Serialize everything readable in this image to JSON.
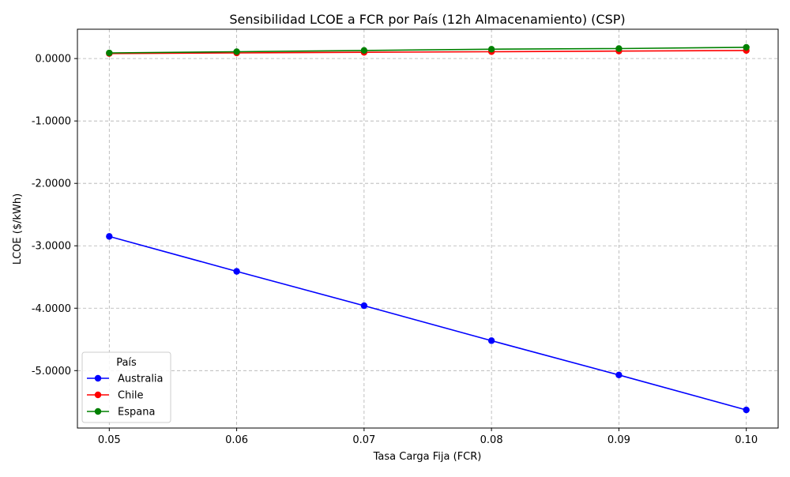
{
  "chart_data": {
    "type": "line",
    "title": "Sensibilidad LCOE a FCR por País (12h Almacenamiento) (CSP)",
    "xlabel": "Tasa Carga Fija (FCR)",
    "ylabel": "LCOE ($/kWh)",
    "x": [
      0.05,
      0.06,
      0.07,
      0.08,
      0.09,
      0.1
    ],
    "x_tick_labels": [
      "0.05",
      "0.06",
      "0.07",
      "0.08",
      "0.09",
      "0.10"
    ],
    "y_ticks": [
      0,
      -1,
      -2,
      -3,
      -4,
      -5
    ],
    "y_tick_labels": [
      "0.0000",
      "-1.0000",
      "-2.0000",
      "-3.0000",
      "-4.0000",
      "-5.0000"
    ],
    "xlim": [
      0.0475,
      0.1025
    ],
    "ylim": [
      -5.92,
      0.47
    ],
    "grid": true,
    "legend": {
      "title": "País",
      "placement": "lower-left"
    },
    "series": [
      {
        "name": "Australia",
        "color": "#0000ff",
        "values": [
          -2.85,
          -3.41,
          -3.96,
          -4.52,
          -5.07,
          -5.63
        ]
      },
      {
        "name": "Chile",
        "color": "#ff0000",
        "values": [
          0.08,
          0.09,
          0.1,
          0.11,
          0.12,
          0.13
        ]
      },
      {
        "name": "Espana",
        "color": "#008000",
        "values": [
          0.09,
          0.11,
          0.13,
          0.15,
          0.16,
          0.18
        ]
      }
    ]
  }
}
